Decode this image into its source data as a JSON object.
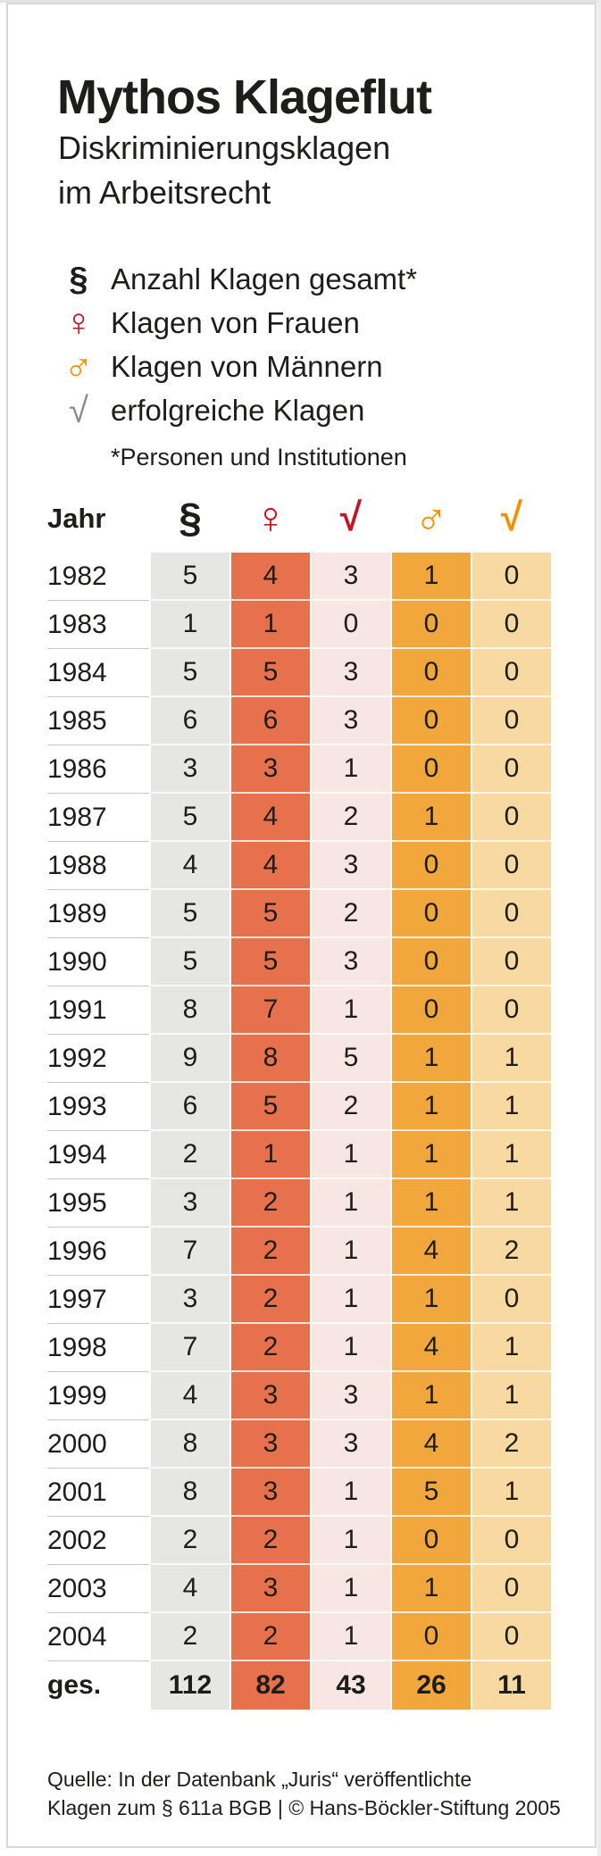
{
  "title": "Mythos Klageflut",
  "subtitle": {
    "line1": "Diskriminierungsklagen",
    "line2": "im Arbeitsrecht"
  },
  "legend": {
    "items": [
      {
        "icon": "section-sign-icon",
        "symbol": "§",
        "color": "#1d1d1b",
        "label": "Anzahl Klagen gesamt*"
      },
      {
        "icon": "female-sign-icon",
        "symbol": "♀",
        "color": "#c31522",
        "label": "Klagen von Frauen"
      },
      {
        "icon": "male-sign-icon",
        "symbol": "♂",
        "color": "#f39200",
        "label": "Klagen von Männern"
      },
      {
        "icon": "check-mark-icon",
        "symbol": "√",
        "color": "#8a8a8a",
        "label": "erfolgreiche Klagen"
      }
    ],
    "footnote": "*Personen und Institutionen"
  },
  "table": {
    "header": {
      "year_label": "Jahr",
      "columns": [
        {
          "key": "total",
          "symbol": "§",
          "color": "#1d1d1b"
        },
        {
          "key": "women",
          "symbol": "♀",
          "color": "#c31522"
        },
        {
          "key": "women_success",
          "symbol": "√",
          "color": "#c31522"
        },
        {
          "key": "men",
          "symbol": "♂",
          "color": "#f39200"
        },
        {
          "key": "men_success",
          "symbol": "√",
          "color": "#f39200"
        }
      ]
    },
    "column_colors": {
      "total": "#e6e6e4",
      "women": "#e7714c",
      "women_success": "#f8e6e2",
      "men": "#f2a73c",
      "men_success": "#f8d9a2"
    },
    "rows": [
      {
        "year": "1982",
        "values": [
          5,
          4,
          3,
          1,
          0
        ]
      },
      {
        "year": "1983",
        "values": [
          1,
          1,
          0,
          0,
          0
        ]
      },
      {
        "year": "1984",
        "values": [
          5,
          5,
          3,
          0,
          0
        ]
      },
      {
        "year": "1985",
        "values": [
          6,
          6,
          3,
          0,
          0
        ]
      },
      {
        "year": "1986",
        "values": [
          3,
          3,
          1,
          0,
          0
        ]
      },
      {
        "year": "1987",
        "values": [
          5,
          4,
          2,
          1,
          0
        ]
      },
      {
        "year": "1988",
        "values": [
          4,
          4,
          3,
          0,
          0
        ]
      },
      {
        "year": "1989",
        "values": [
          5,
          5,
          2,
          0,
          0
        ]
      },
      {
        "year": "1990",
        "values": [
          5,
          5,
          3,
          0,
          0
        ]
      },
      {
        "year": "1991",
        "values": [
          8,
          7,
          1,
          0,
          0
        ]
      },
      {
        "year": "1992",
        "values": [
          9,
          8,
          5,
          1,
          1
        ]
      },
      {
        "year": "1993",
        "values": [
          6,
          5,
          2,
          1,
          1
        ]
      },
      {
        "year": "1994",
        "values": [
          2,
          1,
          1,
          1,
          1
        ]
      },
      {
        "year": "1995",
        "values": [
          3,
          2,
          1,
          1,
          1
        ]
      },
      {
        "year": "1996",
        "values": [
          7,
          2,
          1,
          4,
          2
        ]
      },
      {
        "year": "1997",
        "values": [
          3,
          2,
          1,
          1,
          0
        ]
      },
      {
        "year": "1998",
        "values": [
          7,
          2,
          1,
          4,
          1
        ]
      },
      {
        "year": "1999",
        "values": [
          4,
          3,
          3,
          1,
          1
        ]
      },
      {
        "year": "2000",
        "values": [
          8,
          3,
          3,
          4,
          2
        ]
      },
      {
        "year": "2001",
        "values": [
          8,
          3,
          1,
          5,
          1
        ]
      },
      {
        "year": "2002",
        "values": [
          2,
          2,
          1,
          0,
          0
        ]
      },
      {
        "year": "2003",
        "values": [
          4,
          3,
          1,
          1,
          0
        ]
      },
      {
        "year": "2004",
        "values": [
          2,
          2,
          1,
          0,
          0
        ]
      }
    ],
    "total_row": {
      "year": "ges.",
      "values": [
        112,
        82,
        43,
        26,
        11
      ]
    }
  },
  "source": {
    "line1": "Quelle: In der Datenbank „Juris“ veröffentlichte",
    "line2": "Klagen zum § 611a BGB | © Hans-Böckler-Stiftung 2005"
  },
  "chart_data": {
    "type": "table",
    "title": "Mythos Klageflut",
    "subtitle": "Diskriminierungsklagen im Arbeitsrecht",
    "categories": [
      "1982",
      "1983",
      "1984",
      "1985",
      "1986",
      "1987",
      "1988",
      "1989",
      "1990",
      "1991",
      "1992",
      "1993",
      "1994",
      "1995",
      "1996",
      "1997",
      "1998",
      "1999",
      "2000",
      "2001",
      "2002",
      "2003",
      "2004",
      "ges."
    ],
    "series": [
      {
        "name": "Anzahl Klagen gesamt (§)",
        "values": [
          5,
          1,
          5,
          6,
          3,
          5,
          4,
          5,
          5,
          8,
          9,
          6,
          2,
          3,
          7,
          3,
          7,
          4,
          8,
          8,
          2,
          4,
          2,
          112
        ]
      },
      {
        "name": "Klagen von Frauen (♀)",
        "values": [
          4,
          1,
          5,
          6,
          3,
          4,
          4,
          5,
          5,
          7,
          8,
          5,
          1,
          2,
          2,
          2,
          2,
          3,
          3,
          3,
          2,
          3,
          2,
          82
        ]
      },
      {
        "name": "erfolgreiche Klagen von Frauen (√)",
        "values": [
          3,
          0,
          3,
          3,
          1,
          2,
          3,
          2,
          3,
          1,
          5,
          2,
          1,
          1,
          1,
          1,
          1,
          3,
          3,
          1,
          1,
          1,
          1,
          43
        ]
      },
      {
        "name": "Klagen von Männern (♂)",
        "values": [
          1,
          0,
          0,
          0,
          0,
          1,
          0,
          0,
          0,
          0,
          1,
          1,
          1,
          1,
          4,
          1,
          4,
          1,
          4,
          5,
          0,
          1,
          0,
          26
        ]
      },
      {
        "name": "erfolgreiche Klagen von Männern (√)",
        "values": [
          0,
          0,
          0,
          0,
          0,
          0,
          0,
          0,
          0,
          0,
          1,
          1,
          1,
          1,
          2,
          0,
          1,
          1,
          2,
          1,
          0,
          0,
          0,
          11
        ]
      }
    ],
    "footnote": "*Personen und Institutionen",
    "source": "Quelle: In der Datenbank „Juris“ veröffentlichte Klagen zum § 611a BGB | © Hans-Böckler-Stiftung 2005"
  }
}
